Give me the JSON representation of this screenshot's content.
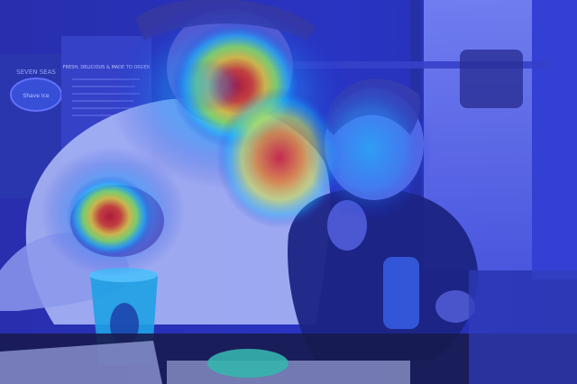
{
  "image": {
    "kind": "photo-with-attention-heatmap-overlay",
    "colormap": "jet",
    "overlay_colors": {
      "low": "#1e2cd8",
      "mid_low": "#19c8ff",
      "mid": "#9cff3a",
      "mid_high": "#ffd21e",
      "high": "#e8141e"
    },
    "scene_colors": {
      "background": "#2a34b8",
      "window": "#6f7fff",
      "table": "#161a3c",
      "man_shirt": "#d7e4ff",
      "child_shirt": "#1a2470"
    },
    "hotspots": [
      {
        "label": "man-face",
        "intensity": 1.0
      },
      {
        "label": "man-chest",
        "intensity": 0.9
      },
      {
        "label": "snack-in-hand",
        "intensity": 1.0
      },
      {
        "label": "child-face",
        "intensity": 0.5
      }
    ]
  },
  "signs": {
    "menu_header": "FRESH, DELICIOUS & MADE TO ORDER",
    "left_poster_brand": "SEVEN SEAS",
    "left_poster_sub": "Shave Ice"
  }
}
